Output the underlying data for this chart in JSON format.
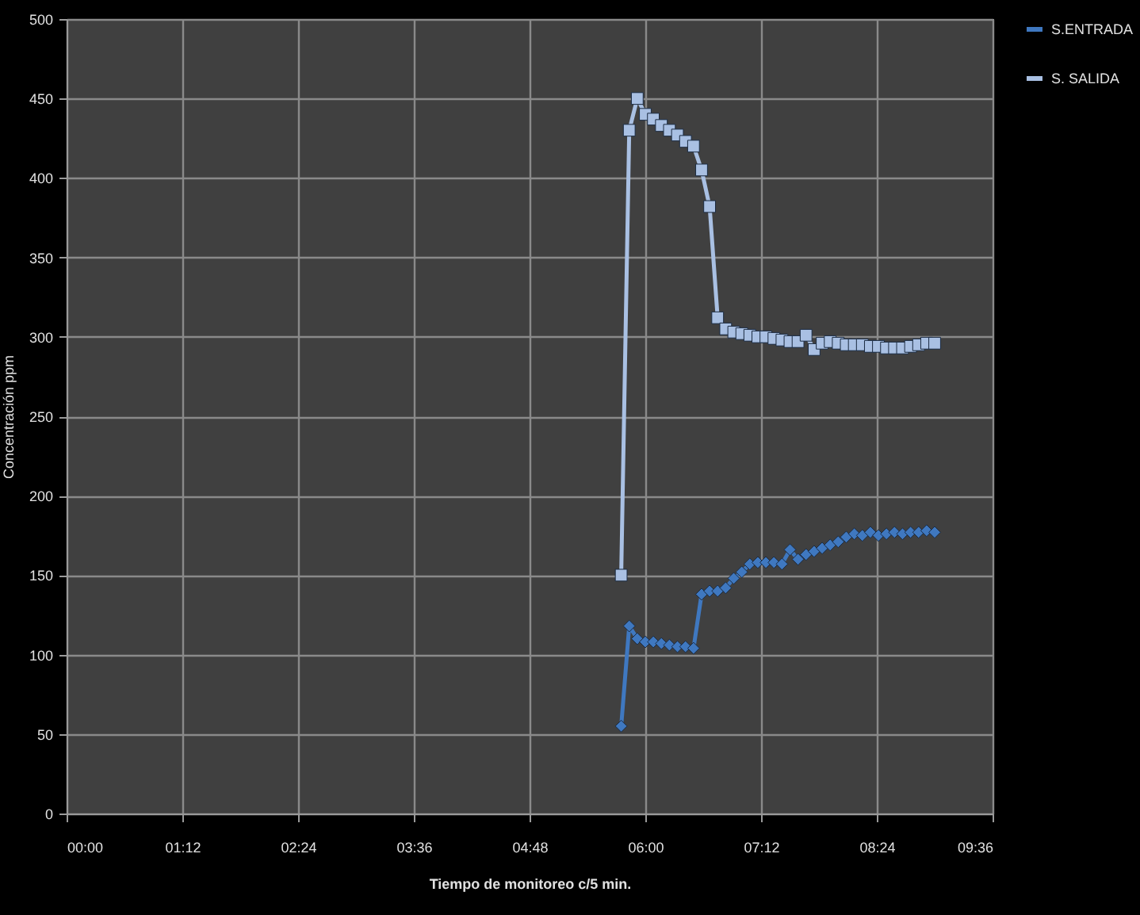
{
  "chart_data": {
    "type": "line",
    "xlabel": "Tiempo de monitoreo c/5 min.",
    "ylabel": "Concentración   ppm",
    "x": [
      5.75,
      5.8333,
      5.9167,
      6.0,
      6.0833,
      6.1667,
      6.25,
      6.3333,
      6.4167,
      6.5,
      6.5833,
      6.6667,
      6.75,
      6.8333,
      6.9167,
      7.0,
      7.0833,
      7.1667,
      7.25,
      7.3333,
      7.4167,
      7.5,
      7.5833,
      7.6667,
      7.75,
      7.8333,
      7.9167,
      8.0,
      8.0833,
      8.1667,
      8.25,
      8.3333,
      8.4167,
      8.5,
      8.5833,
      8.6667,
      8.75,
      8.8333,
      8.9167,
      9.0
    ],
    "series": [
      {
        "name": "S.ENTRADA",
        "color": "#3f78c0",
        "marker": "diamond",
        "values": [
          55,
          118,
          110,
          108,
          108,
          107,
          106,
          105,
          105,
          104,
          138,
          140,
          140,
          142,
          148,
          152,
          157,
          158,
          158,
          158,
          157,
          166,
          160,
          163,
          165,
          167,
          169,
          171,
          174,
          176,
          175,
          177,
          175,
          176,
          177,
          176,
          177,
          177,
          178,
          177
        ]
      },
      {
        "name": "S. SALIDA",
        "color": "#a9c0e3",
        "marker": "square",
        "values": [
          150,
          430,
          450,
          440,
          437,
          433,
          430,
          427,
          423,
          420,
          405,
          382,
          312,
          305,
          303,
          302,
          301,
          300,
          300,
          299,
          298,
          297,
          297,
          301,
          292,
          296,
          297,
          296,
          295,
          295,
          295,
          294,
          294,
          293,
          293,
          293,
          294,
          295,
          296,
          296
        ]
      }
    ],
    "xlim": [
      0,
      9.6
    ],
    "xticks": [
      {
        "value": 0,
        "label": "00:00"
      },
      {
        "value": 1.2,
        "label": "01:12"
      },
      {
        "value": 2.4,
        "label": "02:24"
      },
      {
        "value": 3.6,
        "label": "03:36"
      },
      {
        "value": 4.8,
        "label": "04:48"
      },
      {
        "value": 6.0,
        "label": "06:00"
      },
      {
        "value": 7.2,
        "label": "07:12"
      },
      {
        "value": 8.4,
        "label": "08:24"
      },
      {
        "value": 9.6,
        "label": "09:36"
      }
    ],
    "ylim": [
      0,
      500
    ],
    "yticks": [
      0,
      50,
      100,
      150,
      200,
      250,
      300,
      350,
      400,
      450,
      500
    ],
    "grid": true,
    "legend": "right"
  }
}
